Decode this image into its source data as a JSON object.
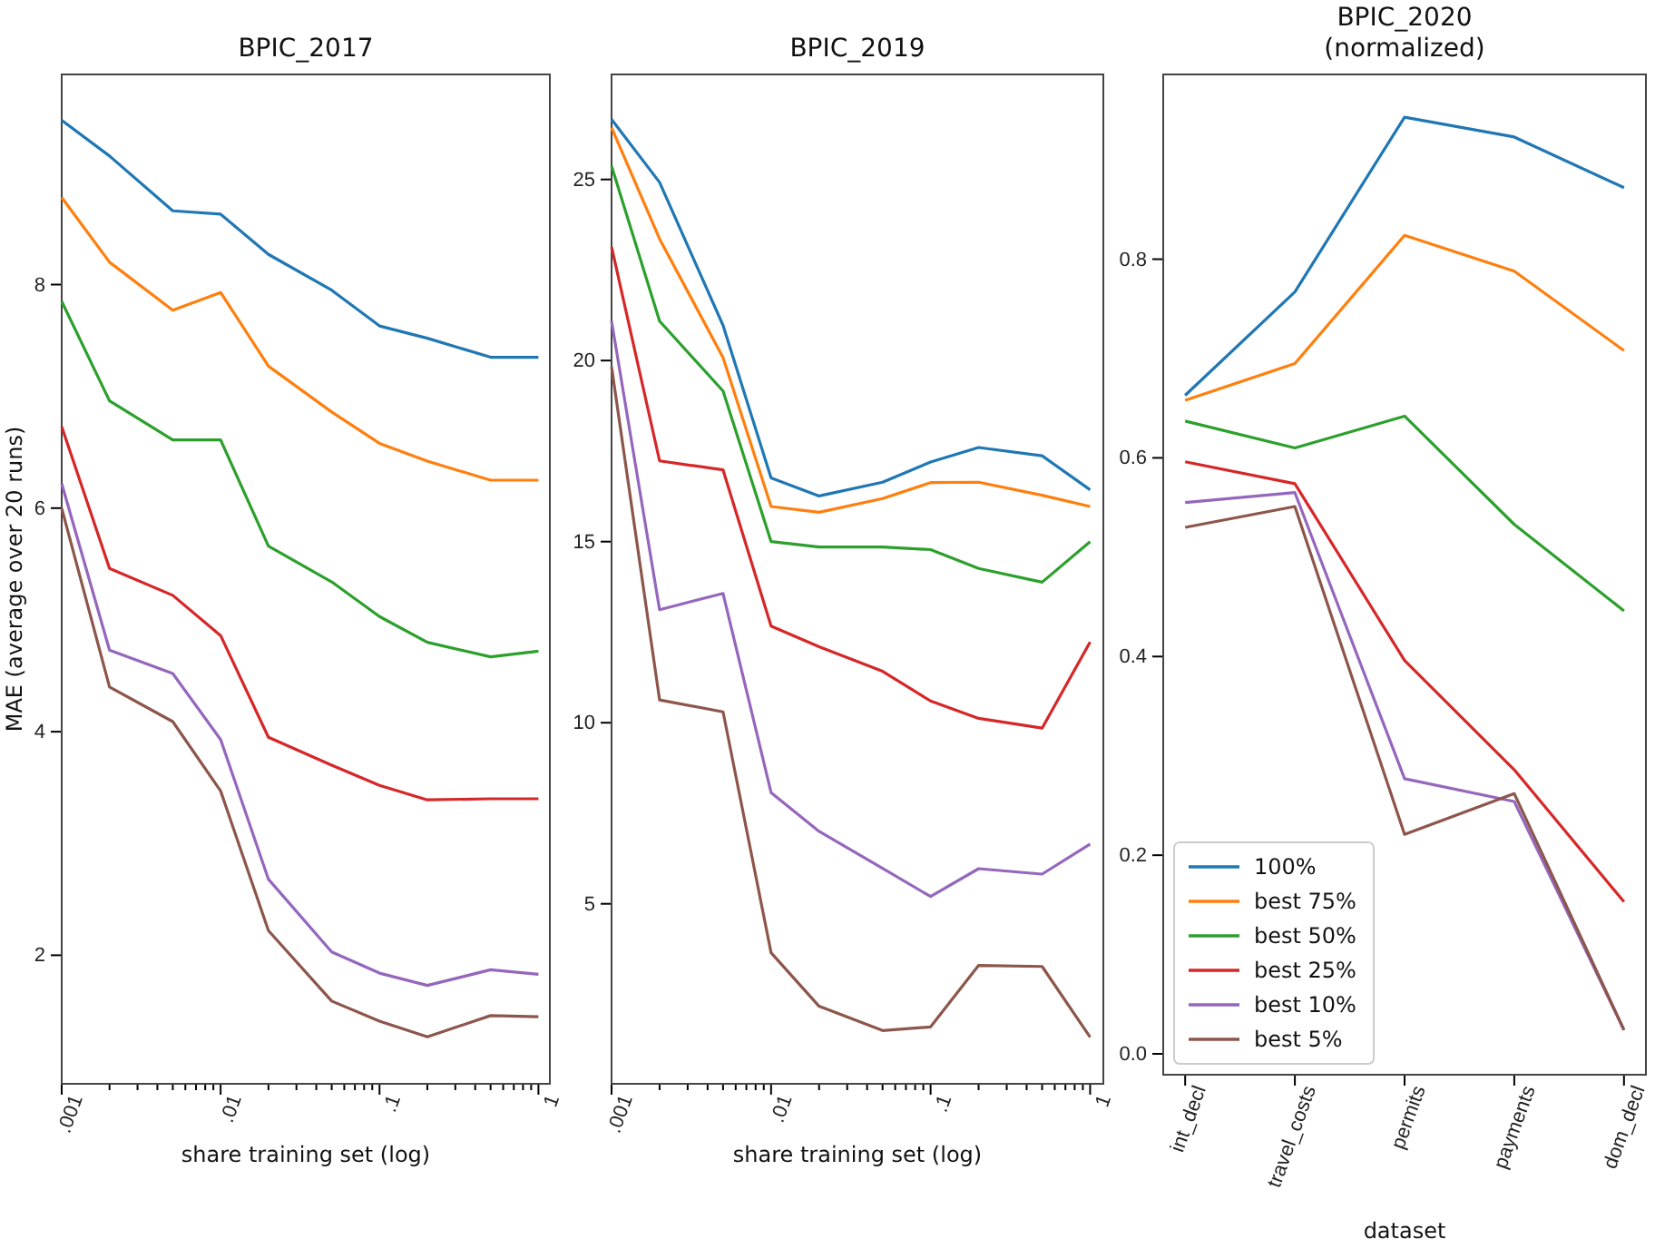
{
  "chart_data": [
    {
      "type": "line",
      "title": "BPIC_2017",
      "xlabel": "share training set (log)",
      "ylabel": "MAE (average over 20 runs)",
      "log": "x",
      "x": [
        0.001,
        0.002,
        0.005,
        0.01,
        0.02,
        0.05,
        0.1,
        0.2,
        0.5,
        1
      ],
      "xlim": [
        0.001,
        1.18
      ],
      "xticks": [
        {
          "value": 0.001,
          "label": ".001"
        },
        {
          "value": 0.002,
          "label": null
        },
        {
          "value": 0.003,
          "label": null
        },
        {
          "value": 0.004,
          "label": null
        },
        {
          "value": 0.005,
          "label": null
        },
        {
          "value": 0.006,
          "label": null
        },
        {
          "value": 0.007,
          "label": null
        },
        {
          "value": 0.008,
          "label": null
        },
        {
          "value": 0.009,
          "label": null
        },
        {
          "value": 0.01,
          "label": ".01"
        },
        {
          "value": 0.02,
          "label": null
        },
        {
          "value": 0.03,
          "label": null
        },
        {
          "value": 0.04,
          "label": null
        },
        {
          "value": 0.05,
          "label": null
        },
        {
          "value": 0.06,
          "label": null
        },
        {
          "value": 0.07,
          "label": null
        },
        {
          "value": 0.08,
          "label": null
        },
        {
          "value": 0.09,
          "label": null
        },
        {
          "value": 0.1,
          "label": ".1"
        },
        {
          "value": 0.2,
          "label": null
        },
        {
          "value": 0.3,
          "label": null
        },
        {
          "value": 0.4,
          "label": null
        },
        {
          "value": 0.5,
          "label": null
        },
        {
          "value": 0.6,
          "label": null
        },
        {
          "value": 0.7,
          "label": null
        },
        {
          "value": 0.8,
          "label": null
        },
        {
          "value": 0.9,
          "label": null
        },
        {
          "value": 1,
          "label": "1"
        }
      ],
      "ylim": [
        0.85,
        9.88
      ],
      "yticks": [
        2,
        4,
        6,
        8
      ],
      "series": [
        {
          "color": "#1f77b4",
          "values": [
            9.47,
            9.15,
            8.66,
            8.63,
            8.27,
            7.95,
            7.63,
            7.52,
            7.35,
            7.35
          ]
        },
        {
          "color": "#ff7f0e",
          "values": [
            8.78,
            8.2,
            7.77,
            7.93,
            7.27,
            6.86,
            6.58,
            6.42,
            6.25,
            6.25
          ]
        },
        {
          "color": "#2ca02c",
          "values": [
            7.85,
            6.96,
            6.61,
            6.61,
            5.66,
            5.34,
            5.03,
            4.8,
            4.67,
            4.72
          ]
        },
        {
          "color": "#d62728",
          "values": [
            6.73,
            5.46,
            5.22,
            4.86,
            3.95,
            3.7,
            3.52,
            3.39,
            3.4,
            3.4
          ]
        },
        {
          "color": "#9467bd",
          "values": [
            6.22,
            4.73,
            4.52,
            3.93,
            2.68,
            2.03,
            1.84,
            1.73,
            1.87,
            1.83
          ]
        },
        {
          "color": "#8c564b",
          "values": [
            6.0,
            4.4,
            4.09,
            3.47,
            2.22,
            1.59,
            1.41,
            1.27,
            1.46,
            1.45
          ]
        }
      ]
    },
    {
      "type": "line",
      "title": "BPIC_2019",
      "xlabel": "share training set (log)",
      "log": "x",
      "x": [
        0.001,
        0.002,
        0.005,
        0.01,
        0.02,
        0.05,
        0.1,
        0.2,
        0.5,
        1
      ],
      "xlim": [
        0.001,
        1.21
      ],
      "xticks": [
        {
          "value": 0.001,
          "label": ".001"
        },
        {
          "value": 0.002,
          "label": null
        },
        {
          "value": 0.003,
          "label": null
        },
        {
          "value": 0.004,
          "label": null
        },
        {
          "value": 0.005,
          "label": null
        },
        {
          "value": 0.006,
          "label": null
        },
        {
          "value": 0.007,
          "label": null
        },
        {
          "value": 0.008,
          "label": null
        },
        {
          "value": 0.009,
          "label": null
        },
        {
          "value": 0.01,
          "label": ".01"
        },
        {
          "value": 0.02,
          "label": null
        },
        {
          "value": 0.03,
          "label": null
        },
        {
          "value": 0.04,
          "label": null
        },
        {
          "value": 0.05,
          "label": null
        },
        {
          "value": 0.06,
          "label": null
        },
        {
          "value": 0.07,
          "label": null
        },
        {
          "value": 0.08,
          "label": null
        },
        {
          "value": 0.09,
          "label": null
        },
        {
          "value": 0.1,
          "label": ".1"
        },
        {
          "value": 0.2,
          "label": null
        },
        {
          "value": 0.3,
          "label": null
        },
        {
          "value": 0.4,
          "label": null
        },
        {
          "value": 0.5,
          "label": null
        },
        {
          "value": 0.6,
          "label": null
        },
        {
          "value": 0.7,
          "label": null
        },
        {
          "value": 0.8,
          "label": null
        },
        {
          "value": 0.9,
          "label": null
        },
        {
          "value": 1,
          "label": "1"
        }
      ],
      "ylim": [
        0.03,
        27.9
      ],
      "yticks": [
        5,
        10,
        15,
        20,
        25
      ],
      "series": [
        {
          "color": "#1f77b4",
          "values": [
            26.66,
            24.92,
            20.97,
            16.76,
            16.26,
            16.64,
            17.2,
            17.6,
            17.37,
            16.43
          ]
        },
        {
          "color": "#ff7f0e",
          "values": [
            26.43,
            23.36,
            20.08,
            15.97,
            15.81,
            16.19,
            16.63,
            16.64,
            16.28,
            15.97
          ]
        },
        {
          "color": "#2ca02c",
          "values": [
            25.37,
            21.09,
            19.16,
            15.0,
            14.85,
            14.85,
            14.78,
            14.26,
            13.88,
            15.0
          ]
        },
        {
          "color": "#d62728",
          "values": [
            23.14,
            17.23,
            16.98,
            12.67,
            12.1,
            11.42,
            10.6,
            10.12,
            9.85,
            12.23
          ]
        },
        {
          "color": "#9467bd",
          "values": [
            21.09,
            13.12,
            13.57,
            8.07,
            7.0,
            5.98,
            5.2,
            5.97,
            5.82,
            6.65
          ]
        },
        {
          "color": "#8c564b",
          "values": [
            19.83,
            10.63,
            10.3,
            3.65,
            2.17,
            1.5,
            1.6,
            3.3,
            3.27,
            1.32
          ]
        }
      ]
    },
    {
      "type": "line",
      "title": "BPIC_2020\n(normalized)",
      "xlabel": "dataset",
      "legend": "bottom left",
      "categories": [
        "int_decl",
        "travel_costs",
        "permits",
        "payments",
        "dom_decl"
      ],
      "ylim": [
        -0.021,
        0.986
      ],
      "yticks": [
        {
          "value": 0,
          "label": "0.0"
        },
        0.2,
        0.4,
        0.6,
        0.8
      ],
      "series": [
        {
          "name": "100%",
          "color": "#1f77b4",
          "values": [
            0.663,
            0.767,
            0.943,
            0.923,
            0.872
          ]
        },
        {
          "name": "best 75%",
          "color": "#ff7f0e",
          "values": [
            0.658,
            0.695,
            0.824,
            0.788,
            0.708
          ]
        },
        {
          "name": "best 50%",
          "color": "#2ca02c",
          "values": [
            0.637,
            0.61,
            0.642,
            0.533,
            0.446
          ]
        },
        {
          "name": "best 25%",
          "color": "#d62728",
          "values": [
            0.596,
            0.574,
            0.396,
            0.286,
            0.153
          ]
        },
        {
          "name": "best 10%",
          "color": "#9467bd",
          "values": [
            0.555,
            0.565,
            0.277,
            0.254,
            0.024
          ]
        },
        {
          "name": "best 5%",
          "color": "#8c564b",
          "values": [
            0.53,
            0.551,
            0.221,
            0.262,
            0.024
          ]
        }
      ]
    }
  ]
}
